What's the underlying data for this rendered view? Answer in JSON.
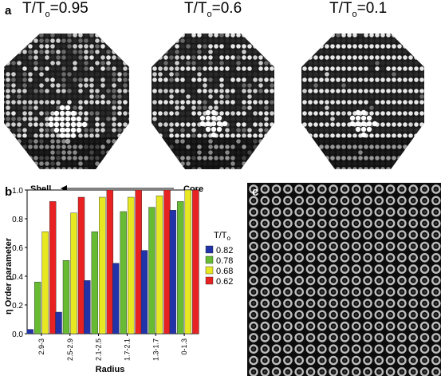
{
  "panel_a": {
    "label": "a",
    "clusters": [
      {
        "prefix": "T/T",
        "sub": "o",
        "suffix": "=0.95",
        "order_level": 0.1
      },
      {
        "prefix": "T/T",
        "sub": "o",
        "suffix": "=0.6",
        "order_level": 0.6
      },
      {
        "prefix": "T/T",
        "sub": "o",
        "suffix": "=0.1",
        "order_level": 0.95
      }
    ]
  },
  "panel_b": {
    "label": "b",
    "shell_label": "Shell",
    "core_label": "Core",
    "chart_data": {
      "type": "bar",
      "categories": [
        "2.9-3",
        "2.5-2.9",
        "2.1-2.5",
        "1.7-2.1",
        "1.3-1.7",
        "0-1.3"
      ],
      "series": [
        {
          "name": "0.82",
          "color": "#2233aa",
          "values": [
            0.03,
            0.15,
            0.37,
            0.49,
            0.58,
            0.86
          ]
        },
        {
          "name": "0.78",
          "color": "#66bb33",
          "values": [
            0.36,
            0.51,
            0.71,
            0.85,
            0.88,
            0.92
          ]
        },
        {
          "name": "0.68",
          "color": "#e8e822",
          "values": [
            0.71,
            0.84,
            0.95,
            0.95,
            0.96,
            1.0
          ]
        },
        {
          "name": "0.62",
          "color": "#e82222",
          "values": [
            0.92,
            0.95,
            1.0,
            1.0,
            1.0,
            1.0
          ]
        }
      ],
      "ylabel": "η Order parameter",
      "xlabel": "Radius",
      "ylim": [
        0,
        1.0
      ],
      "yticks": [
        "0.0",
        "0.2",
        "0.4",
        "0.6",
        "0.8",
        "1.0"
      ],
      "legend_title_prefix": "T/T",
      "legend_title_sub": "o",
      "legend_position": "right"
    }
  },
  "panel_c": {
    "label": "c"
  }
}
